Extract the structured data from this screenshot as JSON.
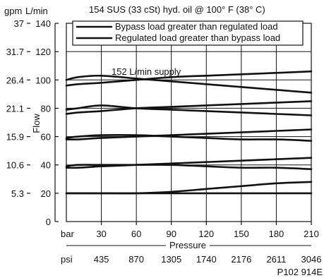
{
  "chart_data": {
    "type": "line",
    "title": "154 SUS (33 cSt) hyd. oil @ 100° F (38° C)",
    "figure_id": "P102 914E",
    "y_unit_primary": "L/min",
    "y_unit_secondary": "gpm",
    "ylabel": "Flow",
    "xlabel": "Pressure",
    "x_unit_primary": "bar",
    "x_unit_secondary": "psi",
    "x_ticks_bar": [
      30,
      60,
      90,
      120,
      150,
      180,
      210
    ],
    "x_ticks_psi": [
      "435",
      "870",
      "1305",
      "1740",
      "2176",
      "2611",
      "3046"
    ],
    "y_ticks_lpm": [
      0,
      20,
      40,
      60,
      80,
      100,
      120,
      140
    ],
    "y_ticks_gpm": [
      {
        "label": "37",
        "lpm": 140
      },
      {
        "label": "31.7",
        "lpm": 120
      },
      {
        "label": "26.4",
        "lpm": 100
      },
      {
        "label": "21.1",
        "lpm": 80
      },
      {
        "label": "15.9",
        "lpm": 60
      },
      {
        "label": "10.6",
        "lpm": 40
      },
      {
        "label": "5.3",
        "lpm": 20
      }
    ],
    "xlim": [
      0,
      210
    ],
    "ylim": [
      0,
      140
    ],
    "grid": true,
    "legend_position": "top",
    "legend": [
      {
        "label": "Bypass load greater than regulated load"
      },
      {
        "label": "Regulated load greater than bypass load"
      }
    ],
    "annotation": "152 L/min supply",
    "series": [
      {
        "x": [
          0,
          10,
          30,
          60,
          90,
          120,
          150,
          180,
          210
        ],
        "y": [
          100,
          102,
          103,
          101,
          99,
          97,
          95,
          93,
          91
        ]
      },
      {
        "x": [
          0,
          10,
          30,
          60,
          90,
          120,
          150,
          180,
          210
        ],
        "y": [
          96,
          97,
          98,
          100,
          102,
          103,
          104,
          105,
          106
        ]
      },
      {
        "x": [
          0,
          10,
          30,
          60,
          90,
          120,
          150,
          180,
          210
        ],
        "y": [
          79,
          80,
          82,
          80,
          79,
          78,
          77,
          76,
          75
        ]
      },
      {
        "x": [
          0,
          10,
          30,
          60,
          90,
          120,
          150,
          180,
          210
        ],
        "y": [
          76,
          77,
          78,
          80,
          81,
          82,
          83,
          84,
          85
        ]
      },
      {
        "x": [
          0,
          10,
          30,
          60,
          90,
          120,
          150,
          180,
          210
        ],
        "y": [
          59,
          60,
          61,
          61,
          60,
          59,
          58,
          58,
          57
        ]
      },
      {
        "x": [
          0,
          10,
          30,
          60,
          90,
          120,
          150,
          180,
          210
        ],
        "y": [
          58,
          58,
          59,
          60,
          61,
          62,
          63,
          64,
          65
        ]
      },
      {
        "x": [
          0,
          10,
          30,
          60,
          90,
          120,
          150,
          180,
          210
        ],
        "y": [
          39,
          40,
          40,
          40,
          40,
          39,
          38,
          38,
          37
        ]
      },
      {
        "x": [
          0,
          10,
          30,
          60,
          90,
          120,
          150,
          180,
          210
        ],
        "y": [
          38,
          38,
          39,
          40,
          41,
          42,
          43,
          44,
          45
        ]
      },
      {
        "x": [
          0,
          10,
          30,
          60,
          90,
          120,
          150,
          180,
          210
        ],
        "y": [
          20,
          20,
          20,
          20,
          20,
          20,
          20,
          20,
          20
        ]
      },
      {
        "x": [
          0,
          10,
          30,
          60,
          90,
          120,
          150,
          180,
          210
        ],
        "y": [
          20,
          20,
          20,
          20,
          21,
          23,
          25,
          27,
          28
        ]
      }
    ]
  }
}
